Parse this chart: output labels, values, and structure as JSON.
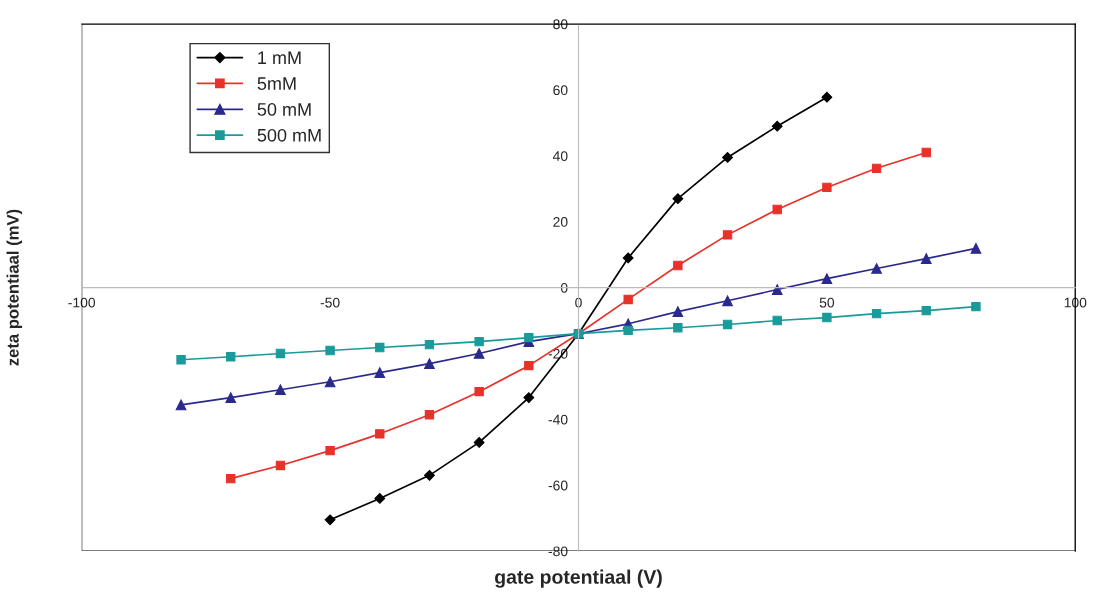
{
  "chart_data": {
    "type": "line",
    "xlabel": "gate potentiaal (V)",
    "ylabel": "zeta potentiaal (mV)",
    "xlim": [
      -100,
      100
    ],
    "ylim": [
      -80,
      80
    ],
    "xticks": [
      -100,
      -50,
      0,
      50,
      100
    ],
    "yticks": [
      -80,
      -60,
      -40,
      -20,
      0,
      20,
      40,
      60,
      80
    ],
    "grid": false,
    "legend": "top left",
    "line_style": "solid",
    "series": [
      {
        "name": "1 mM",
        "color": "#000000",
        "marker": "diamond",
        "x": [
          -50,
          -40,
          -30,
          -20,
          -10,
          0,
          10,
          20,
          30,
          40,
          50
        ],
        "values": [
          -70.5,
          -64,
          -57,
          -47,
          -33.4,
          -14,
          9,
          27,
          39.5,
          49,
          57.8
        ]
      },
      {
        "name": "5mM",
        "color": "#e8312a",
        "marker": "square",
        "x": [
          -70,
          -60,
          -50,
          -40,
          -30,
          -20,
          -10,
          0,
          10,
          20,
          30,
          40,
          50,
          60,
          70
        ],
        "values": [
          -58,
          -54,
          -49.5,
          -44.4,
          -38.6,
          -31.6,
          -23.7,
          -14,
          -3.6,
          6.7,
          16,
          23.7,
          30.4,
          36.2,
          41
        ]
      },
      {
        "name": "50 mM",
        "color": "#2b2a8c",
        "marker": "triangle",
        "x": [
          -80,
          -70,
          -60,
          -50,
          -40,
          -30,
          -20,
          -10,
          0,
          10,
          20,
          30,
          40,
          50,
          60,
          70,
          80
        ],
        "values": [
          -35.6,
          -33.4,
          -31,
          -28.6,
          -25.8,
          -23.1,
          -20,
          -16.4,
          -14,
          -11,
          -7.3,
          -4,
          -0.6,
          2.7,
          5.8,
          8.8,
          11.9
        ]
      },
      {
        "name": "500 mM",
        "color": "#1a9a9a",
        "marker": "square",
        "x": [
          -80,
          -70,
          -60,
          -50,
          -40,
          -30,
          -20,
          -10,
          0,
          10,
          20,
          30,
          40,
          50,
          60,
          70,
          80
        ],
        "values": [
          -21.9,
          -21,
          -20,
          -19.1,
          -18.2,
          -17.3,
          -16.4,
          -15.2,
          -14,
          -13,
          -12.2,
          -11.2,
          -10,
          -9.1,
          -7.9,
          -7,
          -5.8
        ]
      }
    ]
  }
}
